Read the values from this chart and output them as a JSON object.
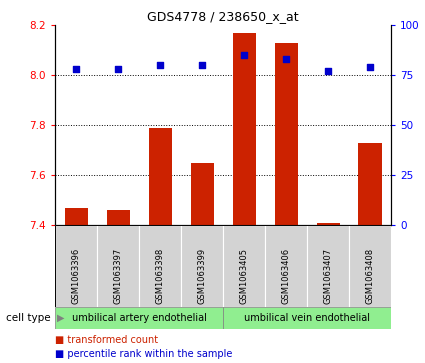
{
  "title": "GDS4778 / 238650_x_at",
  "samples": [
    "GSM1063396",
    "GSM1063397",
    "GSM1063398",
    "GSM1063399",
    "GSM1063405",
    "GSM1063406",
    "GSM1063407",
    "GSM1063408"
  ],
  "transformed_count": [
    7.47,
    7.46,
    7.79,
    7.65,
    8.17,
    8.13,
    7.41,
    7.73
  ],
  "percentile_rank": [
    78,
    78,
    80,
    80,
    85,
    83,
    77,
    79
  ],
  "ylim_left": [
    7.4,
    8.2
  ],
  "ylim_right": [
    0,
    100
  ],
  "yticks_left": [
    7.4,
    7.6,
    7.8,
    8.0,
    8.2
  ],
  "yticks_right": [
    0,
    25,
    50,
    75,
    100
  ],
  "bar_color": "#cc2200",
  "dot_color": "#0000cc",
  "group1_label": "umbilical artery endothelial",
  "group2_label": "umbilical vein endothelial",
  "group1_indices": [
    0,
    1,
    2,
    3
  ],
  "group2_indices": [
    4,
    5,
    6,
    7
  ],
  "cell_type_label": "cell type",
  "legend1": "transformed count",
  "legend2": "percentile rank within the sample",
  "bg_color": "#ffffff",
  "plot_bg": "#ffffff",
  "group_bg": "#90ee90",
  "sample_bg": "#d3d3d3",
  "bar_width": 0.55
}
